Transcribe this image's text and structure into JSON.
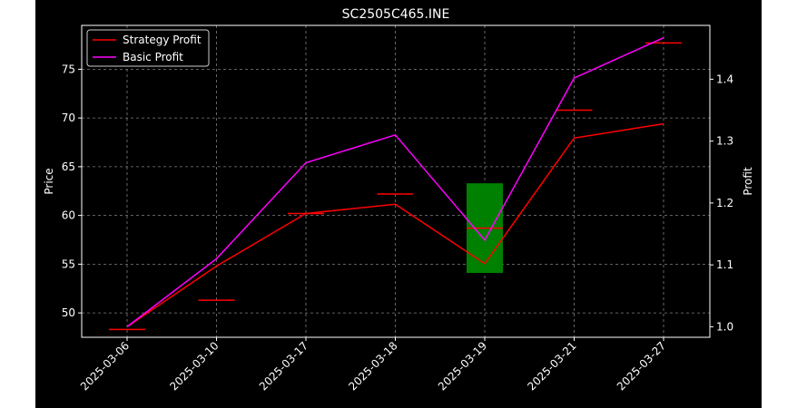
{
  "chart_data": {
    "type": "line",
    "title": "SC2505C465.INE",
    "xlabel": "",
    "ylabel": "Price",
    "y2label": "Profit",
    "categories": [
      "2025-03-06",
      "2025-03-10",
      "2025-03-17",
      "2025-03-18",
      "2025-03-19",
      "2025-03-21",
      "2025-03-27"
    ],
    "ylim": [
      47.5,
      79.5
    ],
    "y2lim": [
      0.983,
      1.487
    ],
    "yticks": [
      50,
      55,
      60,
      65,
      70,
      75
    ],
    "y2ticks": [
      1.0,
      1.1,
      1.2,
      1.3,
      1.4
    ],
    "y2tick_labels": [
      "1.0",
      "1.1",
      "1.2",
      "1.3",
      "1.4"
    ],
    "price_marks": [
      48.3,
      51.3,
      60.2,
      62.2,
      58.7,
      70.8,
      77.7
    ],
    "candle": {
      "category": "2025-03-19",
      "low": 54.1,
      "high": 63.3,
      "color": "#008000"
    },
    "series": [
      {
        "name": "Strategy Profit",
        "axis": "right",
        "color": "#ff0000",
        "values": [
          1.0,
          1.098,
          1.183,
          1.198,
          1.102,
          1.305,
          1.328
        ]
      },
      {
        "name": "Basic Profit",
        "axis": "right",
        "color": "#ff00ff",
        "values": [
          1.0,
          1.11,
          1.265,
          1.31,
          1.14,
          1.402,
          1.467
        ]
      }
    ],
    "grid": true,
    "legend": "top-left",
    "colors": {
      "figure_bg": "#000000",
      "axes_bg": "#000000",
      "text": "#ffffff",
      "grid": "#808080",
      "price_marks": "#ff0000"
    }
  }
}
